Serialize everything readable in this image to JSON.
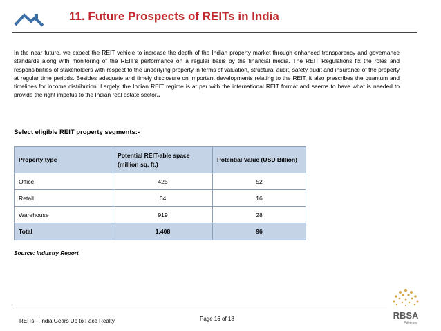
{
  "header": {
    "title": "11. Future Prospects of REITs in India"
  },
  "intro": {
    "text": "In the near future, we expect the REIT vehicle to increase the depth of the Indian property market through enhanced transparency and governance standards along with monitoring of the REIT’s performance on a regular basis by the financial media. The REIT Regulations fix the roles and responsibilities of stakeholders with respect to the underlying property in terms of valuation, structural audit, safety audit and insurance of the property at regular time periods. Besides adequate and timely disclosure on important developments relating to the REIT, it also prescribes the quantum and timelines for income distribution. Largely, the Indian REIT regime is at par with the international REIT format and seems to have what is needed to provide the right impetus to the Indian real estate sector",
    "trailing": ".."
  },
  "segments": {
    "title": "Select eligible REIT property segments:-",
    "headers": [
      "Property type",
      "Potential REIT-able space (million sq. ft.)",
      "Potential Value (USD Billion)"
    ],
    "rows": [
      [
        "Office",
        "425",
        "52"
      ],
      [
        "Retail",
        "64",
        "16"
      ],
      [
        "Warehouse",
        "919",
        "28"
      ]
    ],
    "total": [
      "Total",
      "1,408",
      "96"
    ]
  },
  "source": "Source: Industry Report",
  "footer": {
    "left": "REITs – India Gears Up to Face Realty",
    "page": "Page 16 of 18",
    "brand": "RBSA",
    "brand_sub": "Advisors"
  },
  "colors": {
    "title": "#c0282d",
    "table_header": "#c5d3e6",
    "logo_blue": "#3a6ea5",
    "brand_gold": "#d6a84a"
  }
}
